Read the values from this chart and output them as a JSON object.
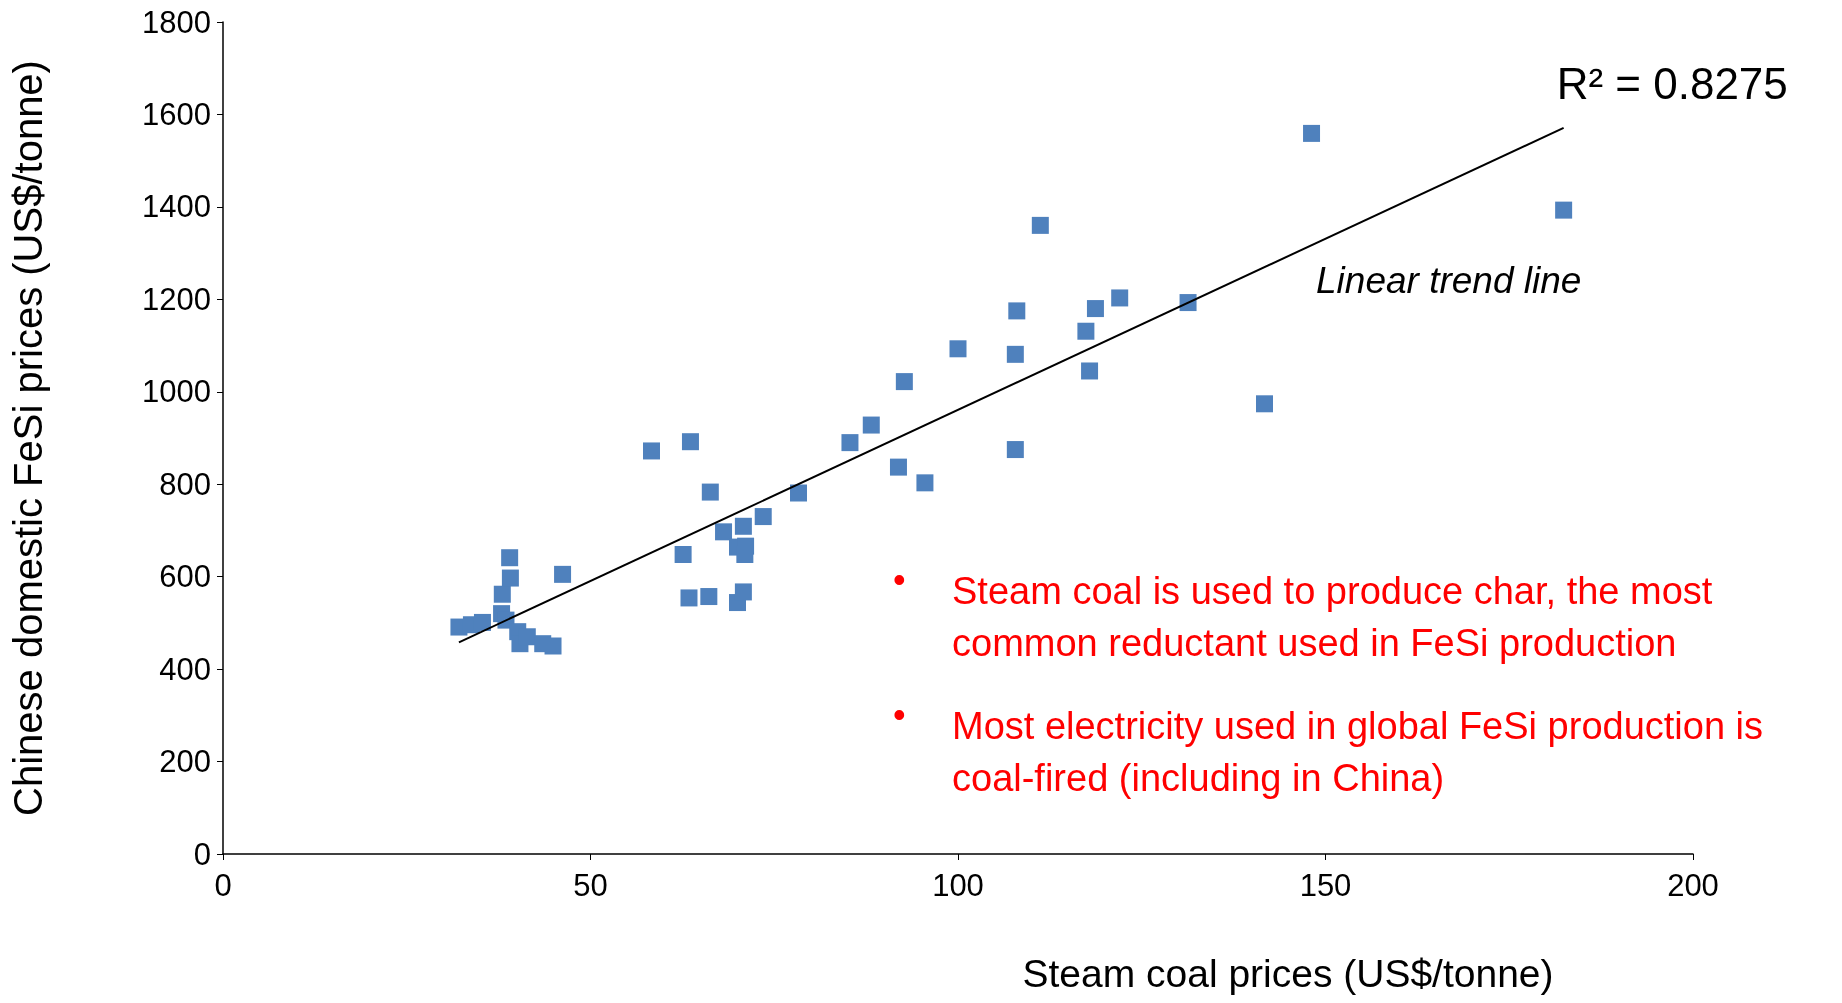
{
  "chart_data": {
    "type": "scatter",
    "xlabel": "Steam coal prices (US$/tonne)",
    "ylabel": "Chinese domestic FeSi prices (US$/tonne)",
    "xlim": [
      0,
      200
    ],
    "xticks": [
      0,
      50,
      100,
      150,
      200
    ],
    "ylim": [
      0,
      1800
    ],
    "yticks": [
      0,
      200,
      400,
      600,
      800,
      1000,
      1200,
      1400,
      1600,
      1800
    ],
    "grid": false,
    "marker": "square",
    "series": [
      {
        "color": "#4f81bd",
        "x": [
          32.1,
          33.8,
          35.3,
          37.9,
          38.0,
          39.0,
          39.1,
          38.5,
          40.1,
          40.4,
          41.4,
          43.5,
          44.9,
          46.2,
          58.3,
          63.6,
          62.6,
          63.4,
          66.1,
          66.3,
          68.1,
          70.0,
          70.8,
          71.1,
          71.0,
          70.0,
          70.8,
          73.5,
          78.3,
          85.3,
          88.2,
          91.9,
          92.7,
          95.5,
          100.0,
          107.8,
          108.0,
          107.8,
          111.2,
          117.4,
          117.9,
          118.7,
          122.0,
          131.3,
          141.7,
          148.1,
          182.4
        ],
        "values": [
          491,
          496,
          501,
          520,
          562,
          641,
          597,
          506,
          481,
          455,
          470,
          455,
          450,
          605,
          872,
          892,
          648,
          554,
          557,
          783,
          697,
          664,
          709,
          666,
          648,
          544,
          567,
          730,
          781,
          890,
          928,
          837,
          1022,
          803,
          1093,
          1081,
          1175,
          875,
          1360,
          1131,
          1045,
          1180,
          1203,
          1193,
          974,
          1559,
          1393
        ]
      },
      {
        "type": "line",
        "color": "#000000",
        "marker": "none",
        "x": [
          32.1,
          182.4
        ],
        "values": [
          458,
          1571
        ]
      }
    ],
    "annotations": [
      {
        "text": "R² = 0.8275",
        "x": 182.4,
        "y": 1571
      },
      "Linear trend line",
      "• Steam coal is used to produce char, the most common reductant used in FeSi production",
      "• Most electricity used in global FeSi production is coal-fired (including in China)"
    ]
  }
}
